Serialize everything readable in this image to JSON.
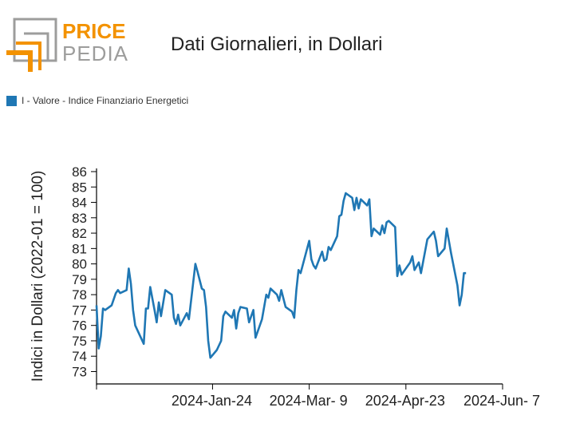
{
  "header": {
    "logo_text_top": "PRICE",
    "logo_text_bottom": "PEDIA",
    "title": "Dati Giornalieri, in Dollari"
  },
  "legend": {
    "label": "I - Valore - Indice Finanziario Energetici"
  },
  "colors": {
    "series": "#1f77b4",
    "logo_orange": "#f39200",
    "logo_gray": "#9d9d9c"
  },
  "chart_data": {
    "type": "line",
    "ylabel": "Indici in Dollari (2022-01 = 100)",
    "xlabel": "",
    "ylim": [
      73,
      86
    ],
    "y_ticks": [
      73,
      74,
      75,
      76,
      77,
      78,
      79,
      80,
      81,
      82,
      83,
      84,
      85,
      86
    ],
    "x_ticks": [
      {
        "label": "2024-Jan-24",
        "day": 54
      },
      {
        "label": "2024-Mar- 9",
        "day": 99
      },
      {
        "label": "2024-Apr-23",
        "day": 144
      },
      {
        "label": "2024-Jun- 7",
        "day": 189
      }
    ],
    "x_range_days": [
      0,
      180
    ],
    "series": [
      {
        "name": "I - Valore - Indice Finanziario Energetici",
        "points": [
          [
            0,
            77.3
          ],
          [
            1,
            74.5
          ],
          [
            2,
            75.3
          ],
          [
            3,
            77.1
          ],
          [
            4,
            77.0
          ],
          [
            7,
            77.3
          ],
          [
            9,
            78.1
          ],
          [
            10,
            78.3
          ],
          [
            11,
            78.1
          ],
          [
            14,
            78.3
          ],
          [
            15,
            79.7
          ],
          [
            16,
            78.7
          ],
          [
            17,
            77.0
          ],
          [
            18,
            76.0
          ],
          [
            22,
            74.8
          ],
          [
            23,
            77.1
          ],
          [
            24,
            77.1
          ],
          [
            25,
            78.5
          ],
          [
            27,
            77.0
          ],
          [
            28,
            76.2
          ],
          [
            29,
            77.5
          ],
          [
            30,
            76.6
          ],
          [
            32,
            78.3
          ],
          [
            35,
            78.0
          ],
          [
            36,
            76.5
          ],
          [
            37,
            76.1
          ],
          [
            38,
            76.7
          ],
          [
            39,
            76.0
          ],
          [
            42,
            76.8
          ],
          [
            43,
            76.4
          ],
          [
            45,
            78.8
          ],
          [
            46,
            80.0
          ],
          [
            47,
            79.5
          ],
          [
            49,
            78.4
          ],
          [
            50,
            78.3
          ],
          [
            51,
            77.2
          ],
          [
            52,
            75.0
          ],
          [
            53,
            73.9
          ],
          [
            56,
            74.4
          ],
          [
            58,
            75.0
          ],
          [
            59,
            76.6
          ],
          [
            60,
            76.9
          ],
          [
            63,
            76.5
          ],
          [
            64,
            77.0
          ],
          [
            65,
            75.8
          ],
          [
            66,
            76.8
          ],
          [
            67,
            77.2
          ],
          [
            70,
            77.1
          ],
          [
            71,
            76.2
          ],
          [
            73,
            77.0
          ],
          [
            74,
            75.2
          ],
          [
            77,
            76.4
          ],
          [
            79,
            78.0
          ],
          [
            80,
            77.8
          ],
          [
            81,
            78.4
          ],
          [
            84,
            78.0
          ],
          [
            85,
            77.6
          ],
          [
            86,
            78.3
          ],
          [
            88,
            77.2
          ],
          [
            91,
            76.9
          ],
          [
            92,
            76.5
          ],
          [
            93,
            78.3
          ],
          [
            94,
            79.6
          ],
          [
            95,
            79.4
          ],
          [
            99,
            81.5
          ],
          [
            100,
            80.3
          ],
          [
            101,
            79.9
          ],
          [
            102,
            79.7
          ],
          [
            105,
            80.8
          ],
          [
            106,
            80.2
          ],
          [
            107,
            80.3
          ],
          [
            108,
            81.1
          ],
          [
            109,
            80.9
          ],
          [
            112,
            81.8
          ],
          [
            113,
            83.1
          ],
          [
            114,
            83.2
          ],
          [
            115,
            84.1
          ],
          [
            116,
            84.6
          ],
          [
            119,
            84.3
          ],
          [
            120,
            83.5
          ],
          [
            121,
            84.3
          ],
          [
            122,
            83.6
          ],
          [
            123,
            84.2
          ],
          [
            126,
            83.8
          ],
          [
            127,
            84.2
          ],
          [
            128,
            81.8
          ],
          [
            129,
            82.3
          ],
          [
            132,
            81.9
          ],
          [
            133,
            82.5
          ],
          [
            134,
            82.0
          ],
          [
            135,
            82.7
          ],
          [
            136,
            82.8
          ],
          [
            139,
            82.4
          ],
          [
            140,
            79.2
          ],
          [
            141,
            79.9
          ],
          [
            142,
            79.3
          ],
          [
            146,
            80.1
          ],
          [
            147,
            80.5
          ],
          [
            148,
            79.6
          ],
          [
            150,
            80.1
          ],
          [
            151,
            79.4
          ],
          [
            154,
            81.6
          ],
          [
            157,
            82.1
          ],
          [
            158,
            81.5
          ],
          [
            159,
            80.5
          ],
          [
            162,
            81.0
          ],
          [
            163,
            82.3
          ],
          [
            164,
            81.5
          ],
          [
            165,
            80.7
          ],
          [
            168,
            78.6
          ],
          [
            169,
            77.3
          ],
          [
            170,
            78.0
          ],
          [
            171,
            79.4
          ],
          [
            172,
            79.4
          ]
        ]
      }
    ],
    "grid": false,
    "legend_position": "top-left"
  }
}
